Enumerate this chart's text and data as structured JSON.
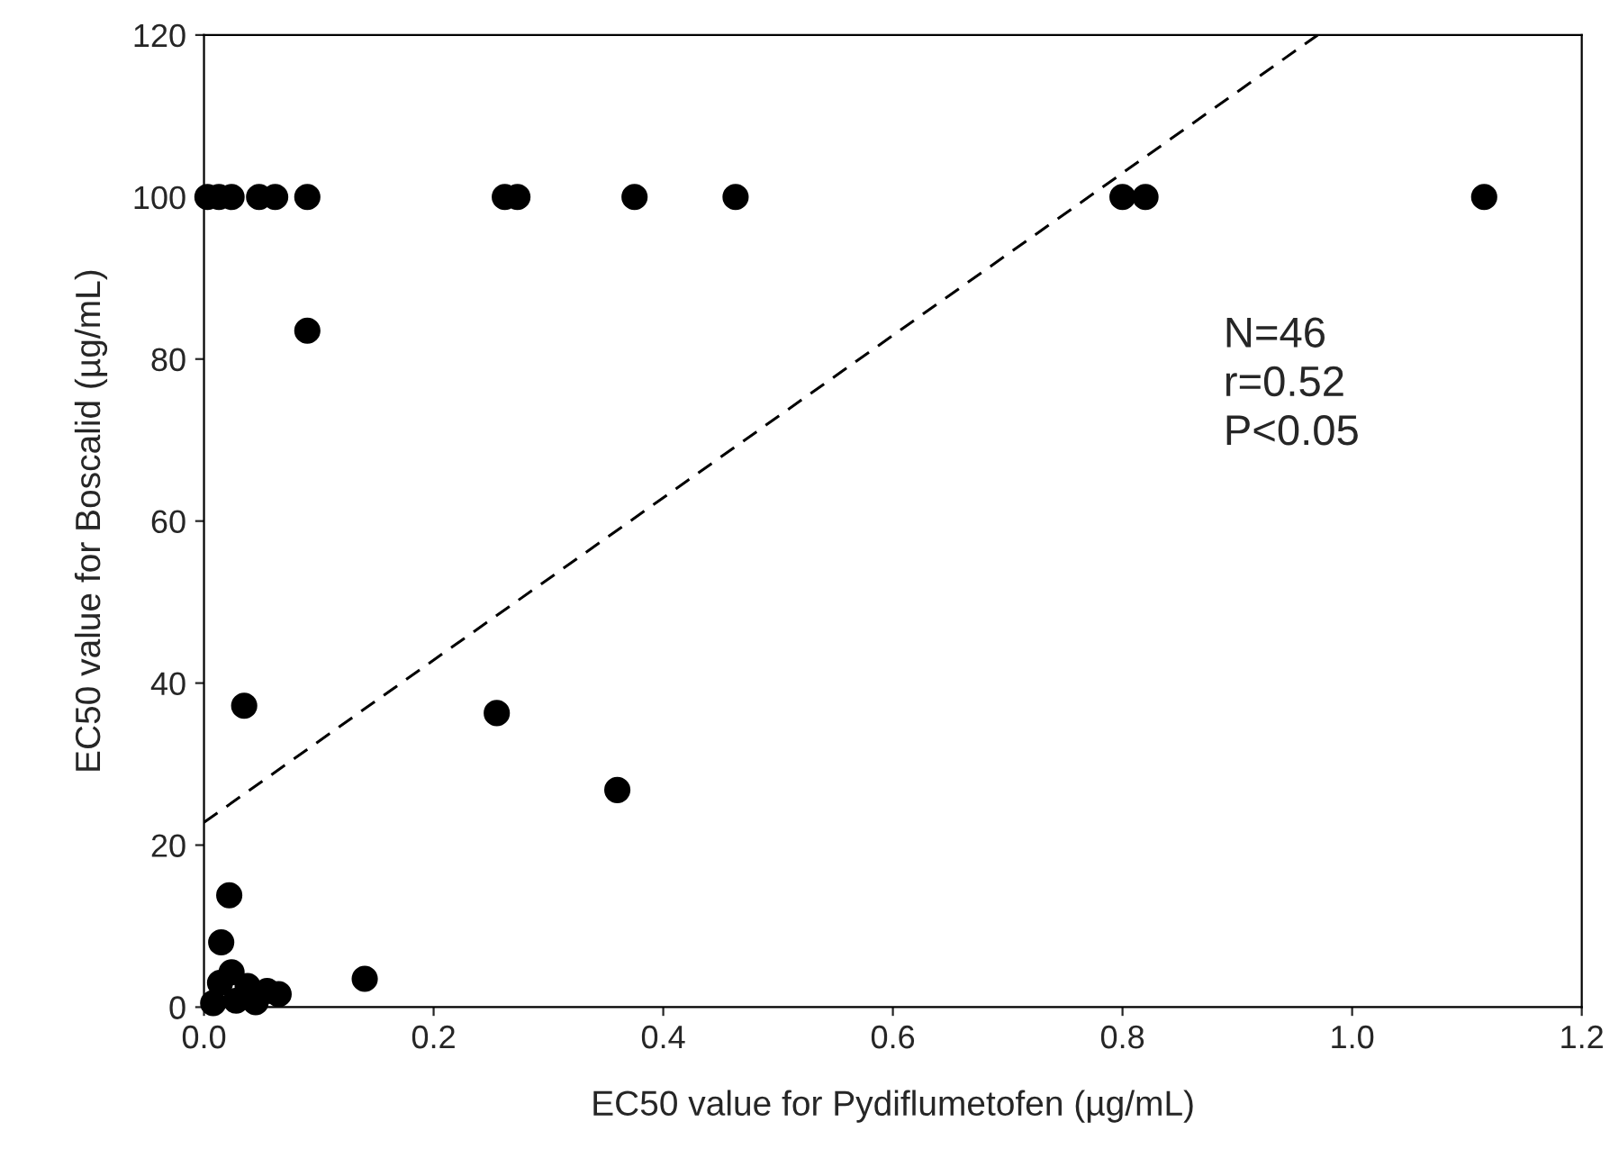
{
  "chart_data": {
    "type": "scatter",
    "xlabel": "EC50 value for Pydiflumetofen (µg/mL)",
    "ylabel": "EC50 value for Boscalid (µg/mL)",
    "annotations": [
      "N=46\nr=0.52\nP<0.05"
    ],
    "xlim": [
      0,
      1.2
    ],
    "ylim": [
      0,
      120
    ],
    "xticks": [
      {
        "value": 0,
        "label": "0.0"
      },
      {
        "value": 0.2,
        "label": "0.2"
      },
      {
        "value": 0.4,
        "label": "0.4"
      },
      {
        "value": 0.6,
        "label": "0.6"
      },
      {
        "value": 0.8,
        "label": "0.8"
      },
      {
        "value": 1.0,
        "label": "1.0"
      },
      {
        "value": 1.2,
        "label": "1.2"
      }
    ],
    "yticks": [
      0,
      20,
      40,
      60,
      80,
      100,
      120
    ],
    "grid": false,
    "marker": "circle",
    "series": [
      {
        "color": "#000000",
        "x": [
          0.003,
          0.013,
          0.024,
          0.048,
          0.062,
          0.09,
          0.262,
          0.273,
          0.375,
          0.463,
          0.8,
          0.82,
          1.115,
          0.09,
          0.035,
          0.255,
          0.36,
          0.022,
          0.015,
          0.14,
          0.008,
          0.014,
          0.024,
          0.028,
          0.038,
          0.045,
          0.055,
          0.065
        ],
        "values": [
          100,
          100,
          100,
          100,
          100,
          100,
          100,
          100,
          100,
          100,
          100,
          100,
          100,
          83.5,
          37.2,
          36.3,
          26.8,
          13.8,
          8,
          3.5,
          0.5,
          3.0,
          4.3,
          0.8,
          2.6,
          0.6,
          2.0,
          1.6
        ]
      },
      {
        "type": "line",
        "color": "#000000",
        "line_style": "dashed",
        "marker": "none",
        "x": [
          0,
          0.97
        ],
        "values": [
          22.8,
          120
        ]
      }
    ]
  }
}
